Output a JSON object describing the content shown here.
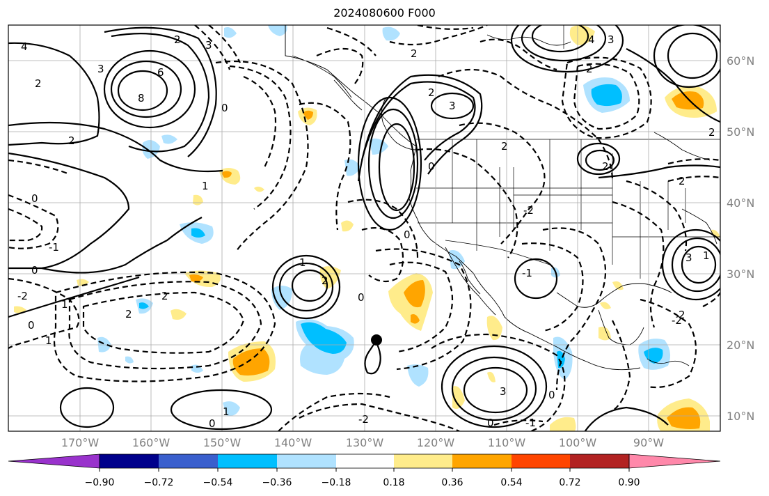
{
  "title": "2024080600 F000",
  "lat_labels": [
    "60°N",
    "50°N",
    "40°N",
    "30°N",
    "20°N",
    "10°N"
  ],
  "lon_labels": [
    "170°W",
    "160°W",
    "150°W",
    "140°W",
    "130°W",
    "120°W",
    "110°W",
    "100°W",
    "90°W"
  ],
  "colorbar": {
    "ticks": [
      "−0.90",
      "−0.72",
      "−0.54",
      "−0.36",
      "−0.18",
      "0.18",
      "0.36",
      "0.54",
      "0.72",
      "0.90"
    ],
    "colors": [
      "#9932cc",
      "#00008b",
      "#3a5fcd",
      "#00bfff",
      "#b0e2ff",
      "#ffffff",
      "#ffec8b",
      "#ffa500",
      "#ff4500",
      "#b22222",
      "#ff88aa"
    ]
  },
  "contour_labels": [
    "4",
    "3",
    "2",
    "8",
    "6",
    "2",
    "0",
    "3",
    "2",
    "1",
    "2",
    "3",
    "2",
    "4",
    "3",
    "0",
    "2",
    "2",
    "1",
    "0",
    "2",
    "1",
    "0",
    "-2",
    "2",
    "1",
    "0",
    "2",
    "-1",
    "0",
    "1",
    "2",
    "-2",
    "0",
    "-1",
    "0",
    "0",
    "3",
    "2",
    "1",
    "-2",
    "3",
    "2",
    "-1",
    "-2",
    "0",
    "2"
  ],
  "colors": {
    "positive_fill_light": "#ffec8b",
    "positive_fill": "#ffa500",
    "negative_fill_light": "#b0e2ff",
    "negative_fill": "#00bfff",
    "grid": "#aaaaaa"
  }
}
